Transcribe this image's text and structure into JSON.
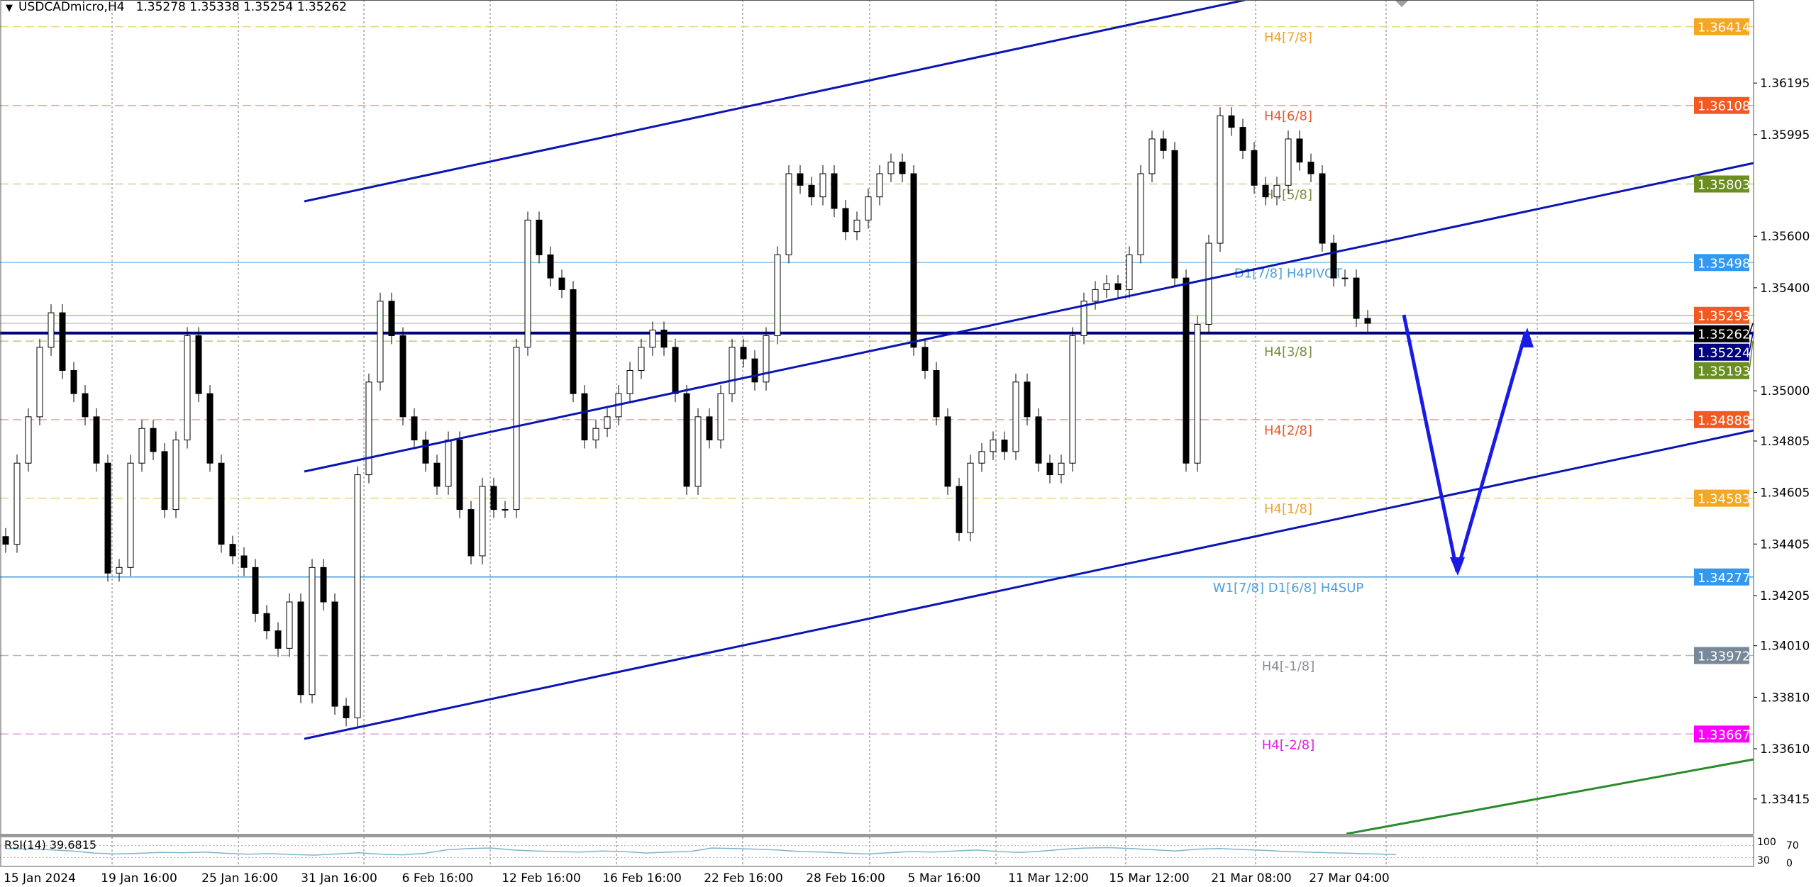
{
  "header": {
    "symbol": "USDCADmicro,H4",
    "ohlc": "1.35278 1.35338 1.35254 1.35262"
  },
  "chart_data": {
    "type": "candlestick",
    "symbol": "USDCADmicro",
    "timeframe": "H4",
    "ylim": [
      1.333,
      1.365
    ],
    "y_ticks": [
      "1.36195",
      "1.35995",
      "1.35600",
      "1.35400",
      "1.35000",
      "1.34805",
      "1.34605",
      "1.34405",
      "1.34205",
      "1.34010",
      "1.33810",
      "1.33610",
      "1.33415"
    ],
    "x_ticks": [
      "15 Jan 2024",
      "19 Jan 16:00",
      "25 Jan 16:00",
      "31 Jan 16:00",
      "6 Feb 16:00",
      "12 Feb 16:00",
      "16 Feb 16:00",
      "22 Feb 16:00",
      "28 Feb 16:00",
      "5 Mar 16:00",
      "11 Mar 12:00",
      "15 Mar 12:00",
      "21 Mar 08:00",
      "27 Mar 04:00"
    ],
    "closes": [
      1.34404,
      1.34719,
      1.34899,
      1.35169,
      1.35303,
      1.35079,
      1.34989,
      1.34899,
      1.34719,
      1.34292,
      1.34314,
      1.34719,
      1.34854,
      1.34764,
      1.34539,
      1.34809,
      1.35214,
      1.34989,
      1.34719,
      1.34404,
      1.34359,
      1.34314,
      1.34135,
      1.34068,
      1.34,
      1.3418,
      1.3382,
      1.34314,
      1.3418,
      1.33775,
      1.3373,
      1.34674,
      1.35034,
      1.35348,
      1.35214,
      1.34899,
      1.34809,
      1.34719,
      1.34629,
      1.34809,
      1.34539,
      1.34359,
      1.34629,
      1.34539,
      1.34539,
      1.35169,
      1.35663,
      1.35528,
      1.35438,
      1.35393,
      1.34989,
      1.34809,
      1.34854,
      1.34899,
      1.34989,
      1.35079,
      1.35169,
      1.35236,
      1.35169,
      1.34989,
      1.34629,
      1.34899,
      1.34809,
      1.34989,
      1.35169,
      1.35124,
      1.35034,
      1.35214,
      1.35528,
      1.35843,
      1.35798,
      1.35753,
      1.35843,
      1.35708,
      1.35618,
      1.35663,
      1.35753,
      1.35843,
      1.35888,
      1.35843,
      1.35169,
      1.35079,
      1.34899,
      1.34629,
      1.34449,
      1.34719,
      1.34764,
      1.34809,
      1.34764,
      1.35034,
      1.34899,
      1.34719,
      1.34674,
      1.34719,
      1.35214,
      1.35348,
      1.35393,
      1.35416,
      1.35393,
      1.35528,
      1.35843,
      1.35978,
      1.35933,
      1.35438,
      1.34719,
      1.35258,
      1.35573,
      1.36068,
      1.36023,
      1.35933,
      1.35798,
      1.35753,
      1.35798,
      1.35978,
      1.35888,
      1.35843,
      1.35573,
      1.35438,
      1.35438,
      1.35281,
      1.35262
    ],
    "levels": [
      {
        "label": "H4[7/8]",
        "price": 1.36414,
        "price_label": "1.36414",
        "line_color": "#e6d77a",
        "label_bg": "#f5a623",
        "text_color": "#f0a030",
        "style": "dashed"
      },
      {
        "label": "H4[6/8]",
        "price": 1.36108,
        "price_label": "1.36108",
        "line_color": "#e0a898",
        "label_bg": "#f25a22",
        "text_color": "#e8582a",
        "style": "dashed"
      },
      {
        "label": "H4[5/8]",
        "price": 1.35803,
        "price_label": "1.35803",
        "line_color": "#cfcfa0",
        "label_bg": "#6b8e23",
        "text_color": "#7a8f3a",
        "style": "dashed"
      },
      {
        "label": "D1[7/8] H4PIVOT",
        "price": 1.35498,
        "price_label": "1.35498",
        "line_color": "#8cc4e6",
        "label_bg": "#3399ee",
        "text_color": "#4a9fe0",
        "style": "solid"
      },
      {
        "label": "",
        "price": 1.35293,
        "price_label": "1.35293",
        "line_color": "#e8a880",
        "label_bg": "#f25a22",
        "text_color": "#e8582a",
        "style": "solid"
      },
      {
        "label": "",
        "price": 1.35224,
        "price_label": "1.35224",
        "line_color": "#000080",
        "label_bg": "#000080",
        "text_color": "#000080",
        "style": "thick"
      },
      {
        "label": "",
        "price": 1.35262,
        "price_label": "1.35262",
        "line_color": "#c8c8c8",
        "label_bg": "#000000",
        "text_color": "#000000",
        "style": "solid"
      },
      {
        "label": "H4[3/8]",
        "price": 1.35193,
        "price_label": "1.35193",
        "line_color": "#c4c48a",
        "label_bg": "#6b8e23",
        "text_color": "#7a8f3a",
        "style": "dashed"
      },
      {
        "label": "H4[2/8]",
        "price": 1.34888,
        "price_label": "1.34888",
        "line_color": "#e0a898",
        "label_bg": "#f25a22",
        "text_color": "#e8582a",
        "style": "dashed"
      },
      {
        "label": "H4[1/8]",
        "price": 1.34583,
        "price_label": "1.34583",
        "line_color": "#e6d77a",
        "label_bg": "#f5a623",
        "text_color": "#f0a030",
        "style": "dashed"
      },
      {
        "label": "W1[7/8] D1[6/8] H4SUP",
        "price": 1.34277,
        "price_label": "1.34277",
        "line_color": "#4499dd",
        "label_bg": "#3399ee",
        "text_color": "#4a9fe0",
        "style": "solid"
      },
      {
        "label": "H4[-1/8]",
        "price": 1.33972,
        "price_label": "1.33972",
        "line_color": "#b8b8b8",
        "label_bg": "#778899",
        "text_color": "#8a9098",
        "style": "dashed"
      },
      {
        "label": "H4[-2/8]",
        "price": 1.33667,
        "price_label": "1.33667",
        "line_color": "#e0a0e0",
        "label_bg": "#ff00ff",
        "text_color": "#e020e0",
        "style": "dashed"
      }
    ],
    "rsi": {
      "label": "RSI(14) 39.6815",
      "period": 14,
      "value": 39.6815,
      "ylim": [
        0,
        100
      ],
      "levels": [
        70,
        30
      ],
      "axis_labels": [
        "100",
        "70",
        "30",
        "0"
      ],
      "color": "#7fb3cc",
      "values": [
        60,
        58,
        56,
        52,
        45,
        42,
        44,
        47,
        46,
        48,
        44,
        41,
        43,
        40,
        38,
        42,
        46,
        41,
        39,
        44,
        56,
        60,
        62,
        55,
        52,
        50,
        48,
        52,
        50,
        45,
        48,
        50,
        62,
        60,
        58,
        55,
        50,
        48,
        45,
        42,
        46,
        50,
        48,
        52,
        55,
        50,
        47,
        52,
        58,
        62,
        63,
        60,
        56,
        52,
        58,
        60,
        57,
        54,
        50,
        48,
        46,
        44,
        42,
        40
      ]
    },
    "colors": {
      "bull_body": "#ffffff",
      "bear_body": "#000000",
      "candle_outline": "#000000",
      "channel": "#0a14b4",
      "forecast_arrow": "#1a1ae6",
      "green_trend": "#2a8a2a"
    }
  }
}
